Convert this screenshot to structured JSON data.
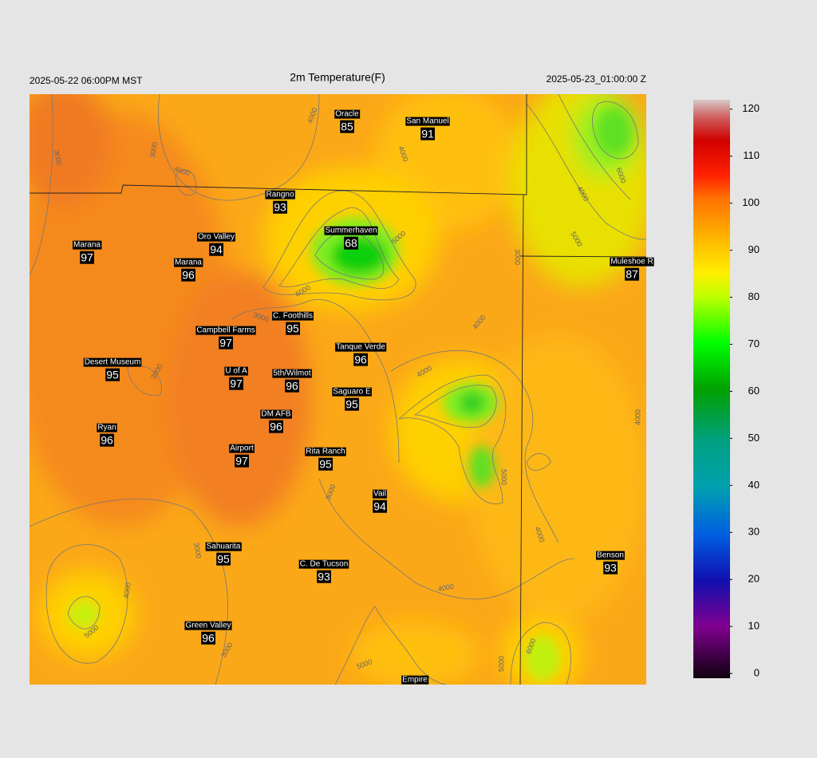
{
  "header": {
    "left": "2025-05-22 06:00PM MST",
    "title": "2m Temperature(F)",
    "right": "2025-05-23_01:00:00 Z"
  },
  "stations": [
    {
      "name": "Oracle",
      "value": 85
    },
    {
      "name": "San Manuel",
      "value": 91
    },
    {
      "name": "Rangno",
      "value": 93
    },
    {
      "name": "Summerhaven",
      "value": 68
    },
    {
      "name": "Marana",
      "value": 97
    },
    {
      "name": "Oro Valley",
      "value": 94
    },
    {
      "name": "Marana",
      "value": 96
    },
    {
      "name": "Muleshoe R",
      "value": 87
    },
    {
      "name": "C. Foothills",
      "value": 95
    },
    {
      "name": "Campbell Farms",
      "value": 97
    },
    {
      "name": "Tanque Verde",
      "value": 96
    },
    {
      "name": "Desert Museum",
      "value": 95
    },
    {
      "name": "U of A",
      "value": 97
    },
    {
      "name": "5th/Wilmot",
      "value": 96
    },
    {
      "name": "Saguaro E",
      "value": 95
    },
    {
      "name": "DM AFB",
      "value": 96
    },
    {
      "name": "Ryan",
      "value": 96
    },
    {
      "name": "Airport",
      "value": 97
    },
    {
      "name": "Rita Ranch",
      "value": 95
    },
    {
      "name": "Vail",
      "value": 94
    },
    {
      "name": "Sahuarita",
      "value": 95
    },
    {
      "name": "Benson",
      "value": 93
    },
    {
      "name": "C. De Tucson",
      "value": 93
    },
    {
      "name": "Green Valley",
      "value": 96
    },
    {
      "name": "Empire"
    }
  ],
  "contour_labels": [
    "4000",
    "3000",
    "3000",
    "4000",
    "4000",
    "5000",
    "6000",
    "5000",
    "6000",
    "3000",
    "4000",
    "3000",
    "3000",
    "4000",
    "5000",
    "4000",
    "3000",
    "3000",
    "4000",
    "5000",
    "4000",
    "3000",
    "5000",
    "5000",
    "6000",
    "4000",
    "4000"
  ],
  "colorbar": {
    "lim": [
      -1,
      122
    ],
    "ticks": [
      0,
      10,
      20,
      30,
      40,
      50,
      60,
      70,
      80,
      90,
      100,
      110,
      120
    ]
  }
}
